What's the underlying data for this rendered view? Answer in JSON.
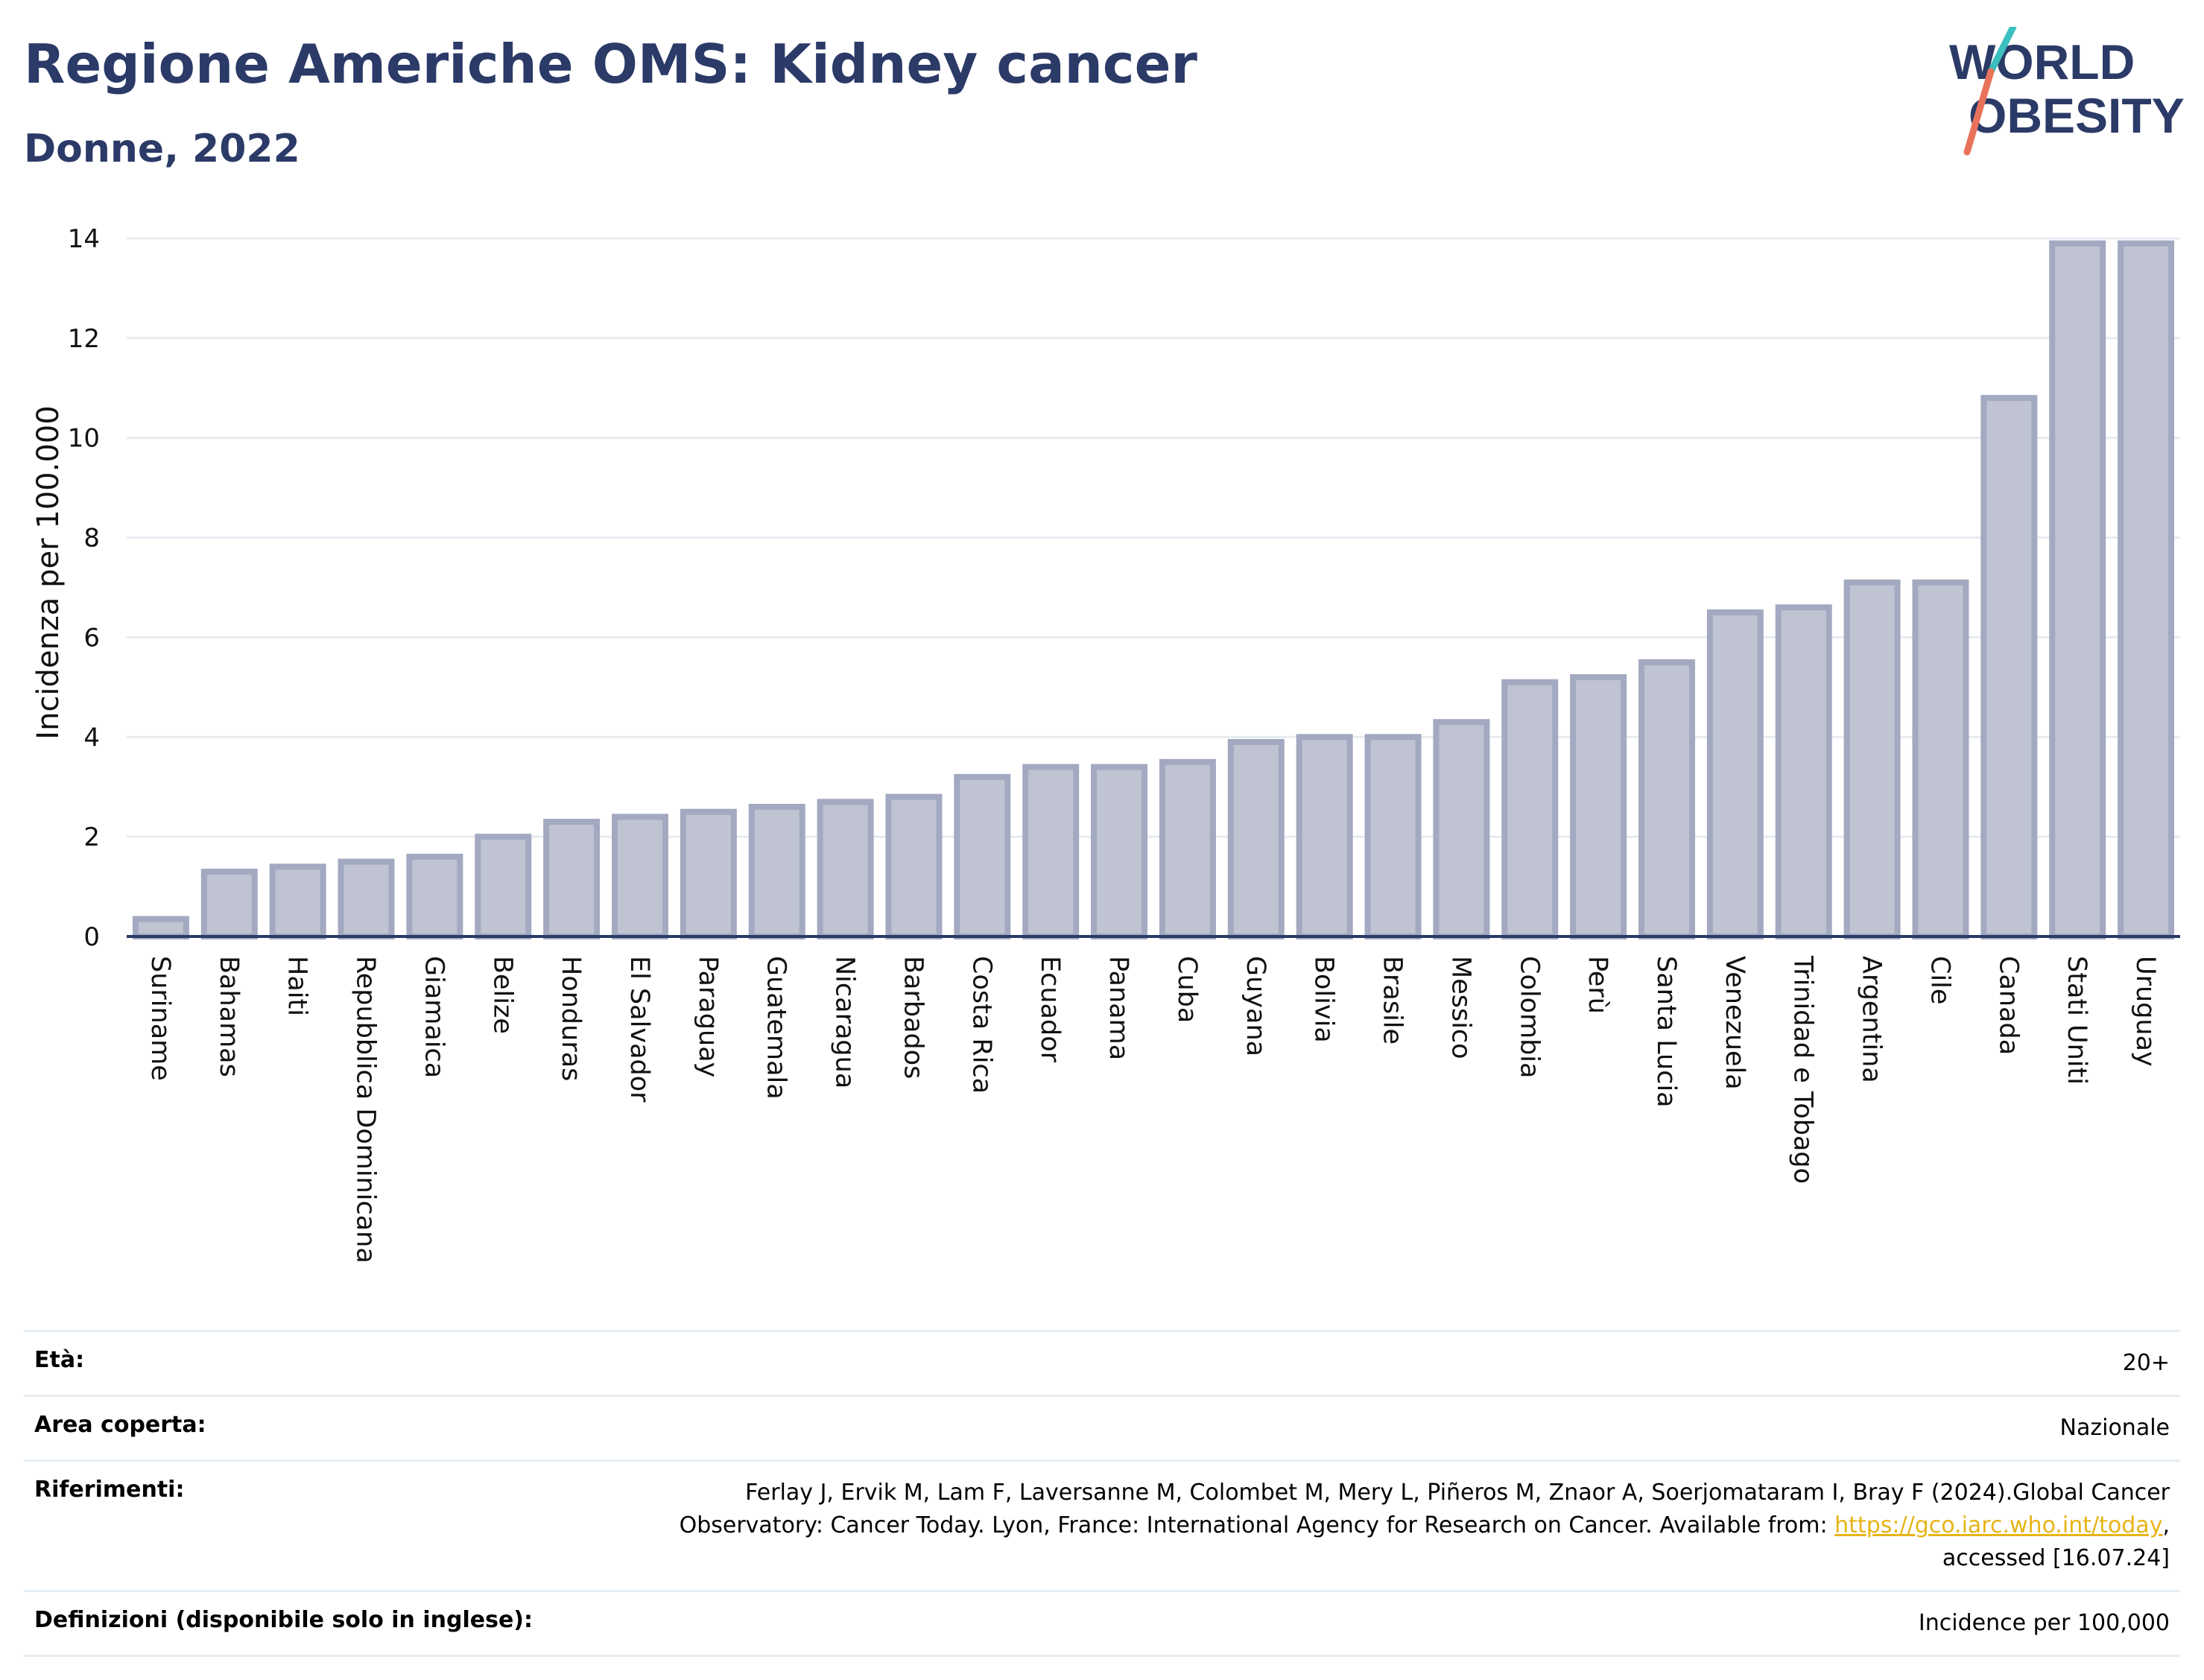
{
  "header": {
    "title": "Regione Americhe OMS: Kidney cancer",
    "subtitle": "Donne, 2022"
  },
  "logo": {
    "line1": "WORLD",
    "line2": "OBESITY",
    "text_color": "#2b3a67",
    "slash_colors": [
      "#3bbfbf",
      "#e8735a"
    ]
  },
  "chart_data": {
    "type": "bar",
    "title": "Regione Americhe OMS: Kidney cancer",
    "subtitle": "Donne, 2022",
    "ylabel": "Incidenza per 100.000",
    "xlabel": "",
    "ylim": [
      0,
      14
    ],
    "yticks": [
      0,
      2,
      4,
      6,
      8,
      10,
      12,
      14
    ],
    "grid": true,
    "bar_fill": "#bfc3d2",
    "bar_stroke": "#a3a9c0",
    "categories": [
      "Suriname",
      "Bahamas",
      "Haiti",
      "Repubblica Dominicana",
      "Giamaica",
      "Belize",
      "Honduras",
      "El Salvador",
      "Paraguay",
      "Guatemala",
      "Nicaragua",
      "Barbados",
      "Costa Rica",
      "Ecuador",
      "Panama",
      "Cuba",
      "Guyana",
      "Bolivia",
      "Brasile",
      "Messico",
      "Colombia",
      "Perù",
      "Santa Lucia",
      "Venezuela",
      "Trinidad e Tobago",
      "Argentina",
      "Cile",
      "Canada",
      "Stati Uniti",
      "Uruguay"
    ],
    "values": [
      0.35,
      1.3,
      1.4,
      1.5,
      1.6,
      2.0,
      2.3,
      2.4,
      2.5,
      2.6,
      2.7,
      2.8,
      3.2,
      3.4,
      3.4,
      3.5,
      3.9,
      4.0,
      4.0,
      4.3,
      5.1,
      5.2,
      5.5,
      6.5,
      6.6,
      7.1,
      7.1,
      10.8,
      13.9,
      13.9
    ]
  },
  "info": {
    "rows": [
      {
        "label": "Età:",
        "value": "20+"
      },
      {
        "label": "Area coperta:",
        "value": "Nazionale"
      },
      {
        "label": "Riferimenti:",
        "value_before": "Ferlay J, Ervik M, Lam F, Laversanne M, Colombet M, Mery L, Piñeros M, Znaor A, Soerjomataram I, Bray F (2024).Global Cancer Observatory: Cancer Today. Lyon, France: International Agency for Research on Cancer. Available from: ",
        "link": "https://gco.iarc.who.int/today",
        "value_after": ", accessed [16.07.24]"
      },
      {
        "label": "Definizioni (disponibile solo in inglese):",
        "value": "Incidence per 100,000"
      }
    ]
  }
}
